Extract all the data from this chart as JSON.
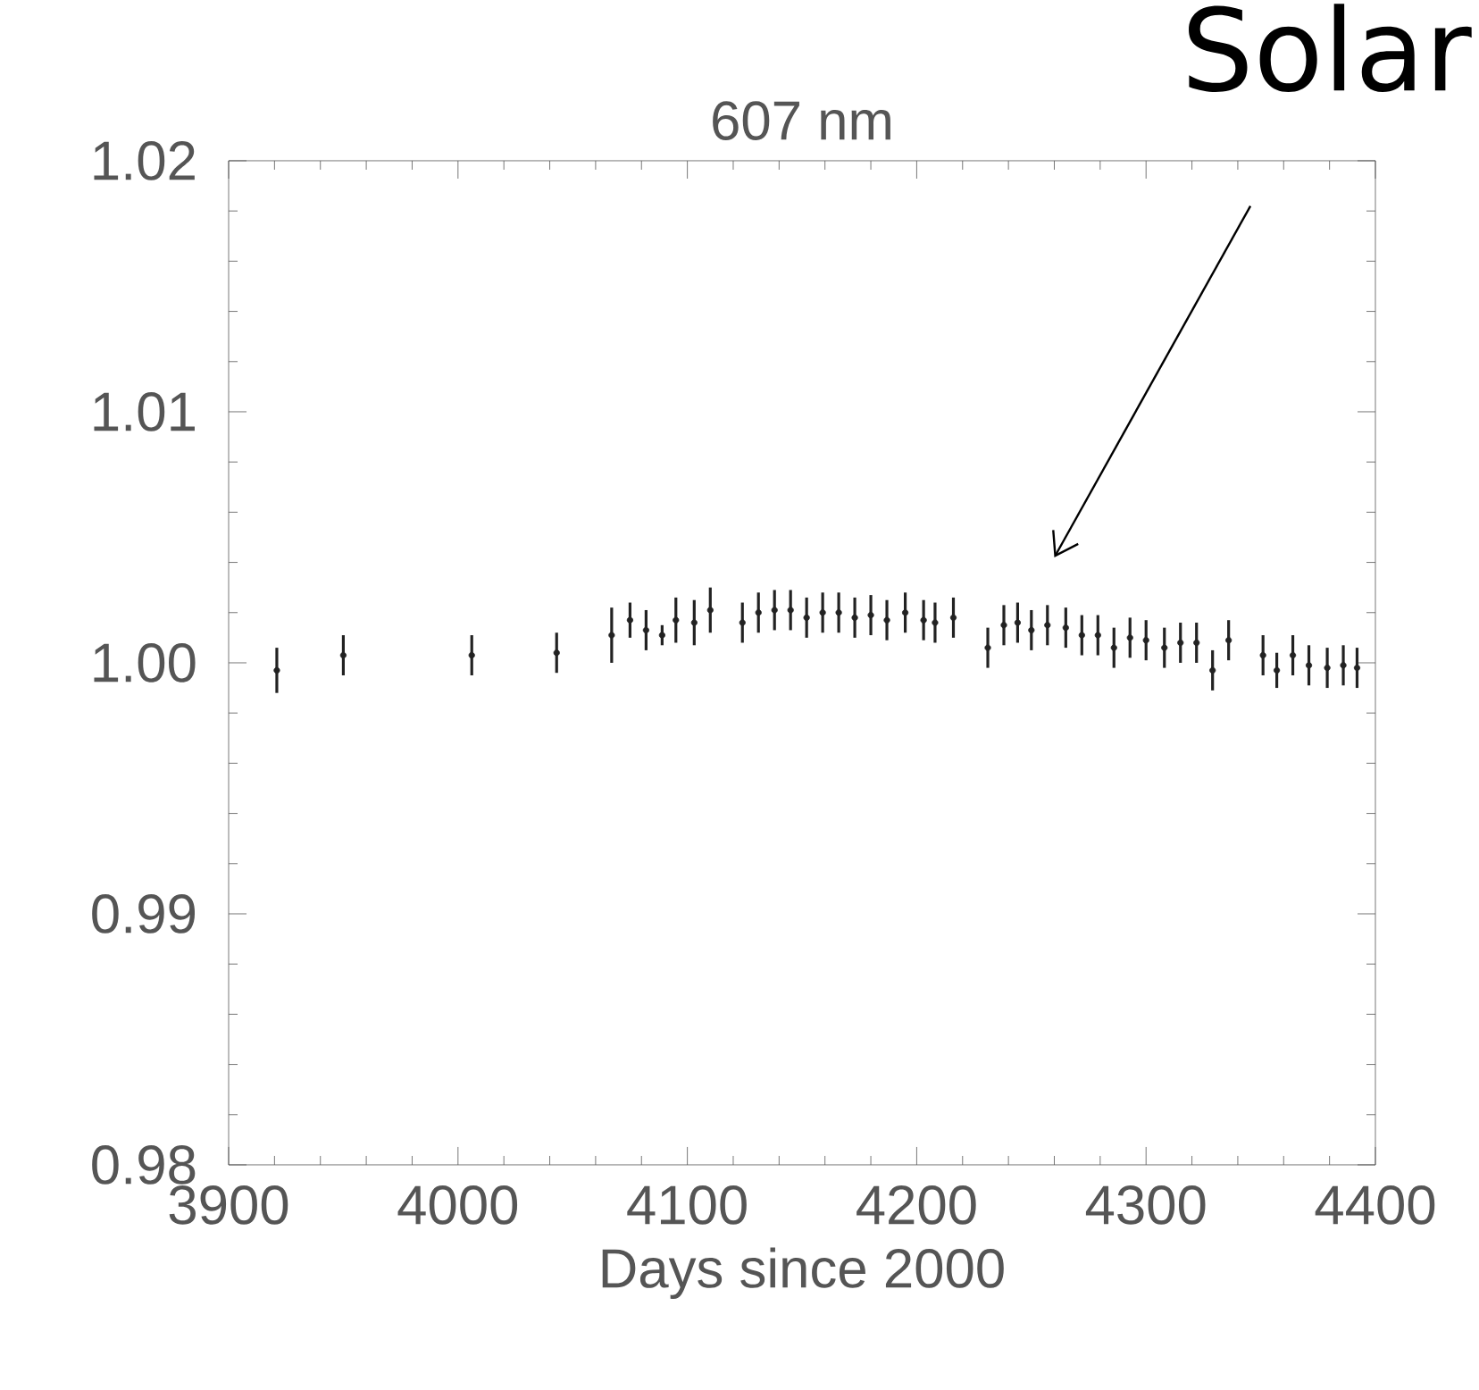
{
  "chart_data": {
    "type": "scatter",
    "title": "607 nm",
    "xlabel": "Days since 2000",
    "annotations": [
      "Solar"
    ],
    "x": [
      3921,
      3950,
      4006,
      4043,
      4067,
      4075,
      4082,
      4089,
      4095,
      4103,
      4110,
      4124,
      4131,
      4138,
      4145,
      4152,
      4159,
      4166,
      4173,
      4180,
      4187,
      4195,
      4203,
      4208,
      4216,
      4231,
      4238,
      4244,
      4250,
      4257,
      4265,
      4272,
      4279,
      4286,
      4293,
      4300,
      4308,
      4315,
      4322,
      4329,
      4336,
      4351,
      4357,
      4364,
      4371,
      4379,
      4386,
      4392
    ],
    "values": [
      0.9997,
      1.0003,
      1.0003,
      1.0004,
      1.0011,
      1.0017,
      1.0013,
      1.0011,
      1.0017,
      1.0016,
      1.0021,
      1.0016,
      1.002,
      1.0021,
      1.0021,
      1.0018,
      1.002,
      1.002,
      1.0018,
      1.0019,
      1.0017,
      1.002,
      1.0017,
      1.0016,
      1.0018,
      1.0006,
      1.0015,
      1.0016,
      1.0013,
      1.0015,
      1.0014,
      1.0011,
      1.0011,
      1.0006,
      1.001,
      1.0009,
      1.0006,
      1.0008,
      1.0008,
      0.9997,
      1.0009,
      1.0003,
      0.9997,
      1.0003,
      0.9999,
      0.9998,
      0.9999,
      0.9998
    ],
    "errors": [
      0.0009,
      0.0008,
      0.0008,
      0.0008,
      0.0011,
      0.0007,
      0.0008,
      0.0004,
      0.0009,
      0.0009,
      0.0009,
      0.0008,
      0.0008,
      0.0008,
      0.0008,
      0.0008,
      0.0008,
      0.0008,
      0.0008,
      0.0008,
      0.0008,
      0.0008,
      0.0008,
      0.0008,
      0.0008,
      0.0008,
      0.0008,
      0.0008,
      0.0008,
      0.0008,
      0.0008,
      0.0008,
      0.0008,
      0.0008,
      0.0008,
      0.0008,
      0.0008,
      0.0008,
      0.0008,
      0.0008,
      0.0008,
      0.0008,
      0.0007,
      0.0008,
      0.0008,
      0.0008,
      0.0008,
      0.0008
    ],
    "color": "#222222",
    "marker": "circle",
    "xlim": [
      3900,
      4400
    ],
    "xticks": [
      3900,
      4000,
      4100,
      4200,
      4300,
      4400
    ],
    "ylim": [
      0.98,
      1.02
    ],
    "yticks": [
      0.98,
      0.99,
      {
        "value": 1,
        "label": "1.00"
      },
      1.01,
      1.02
    ]
  }
}
